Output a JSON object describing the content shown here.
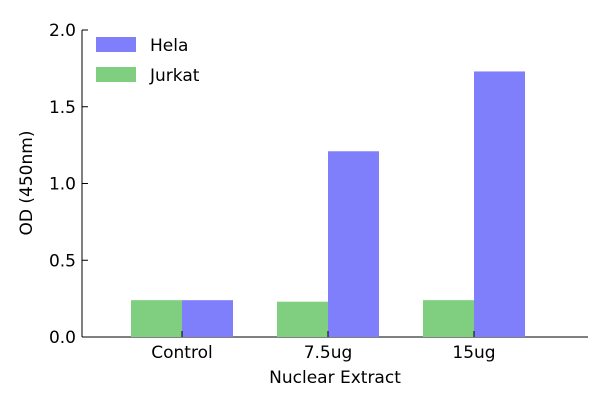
{
  "chart_data": {
    "type": "bar",
    "title": "",
    "xlabel": "Nuclear Extract",
    "ylabel": "OD (450nm)",
    "categories": [
      "Control",
      "7.5ug",
      "15ug"
    ],
    "series": [
      {
        "name": "Jurkat",
        "color": "#80cf80",
        "values": [
          0.24,
          0.23,
          0.24
        ]
      },
      {
        "name": "Hela",
        "color": "#7f7ffb",
        "values": [
          0.24,
          1.21,
          1.73
        ]
      }
    ],
    "ylim": [
      0.0,
      2.0
    ],
    "yticks": [
      "0.0",
      "0.5",
      "1.0",
      "1.5",
      "2.0"
    ],
    "legend": {
      "position": "top-left",
      "order": [
        "Hela",
        "Jurkat"
      ]
    },
    "grid": false
  }
}
